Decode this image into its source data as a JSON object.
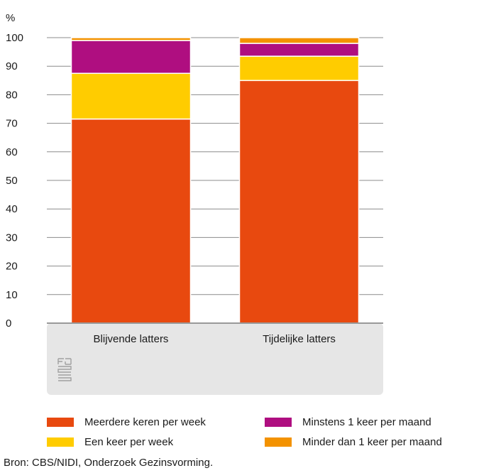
{
  "chart_data": {
    "type": "bar",
    "stacked": true,
    "ylabel": "%",
    "ylim": [
      0,
      100
    ],
    "yticks": [
      0,
      10,
      20,
      30,
      40,
      50,
      60,
      70,
      80,
      90,
      100
    ],
    "grid": true,
    "categories": [
      "Blijvende latters",
      "Tijdelijke latters"
    ],
    "series": [
      {
        "name": "Meerdere keren per week",
        "color": "#e8490f",
        "values": [
          71.5,
          85.0
        ]
      },
      {
        "name": "Een keer per week",
        "color": "#ffcc00",
        "values": [
          16.0,
          8.5
        ]
      },
      {
        "name": "Minstens 1 keer per maand",
        "color": "#af0e80",
        "values": [
          11.5,
          4.5
        ]
      },
      {
        "name": "Minder dan 1 keer per maand",
        "color": "#f39200",
        "values": [
          1.0,
          2.0
        ]
      }
    ],
    "legend_position": "bottom",
    "legend_order": [
      0,
      2,
      1,
      3
    ]
  },
  "source": "Bron: CBS/NIDI, Onderzoek Gezinsvorming.",
  "logo_icon": "cbs-logo-icon"
}
